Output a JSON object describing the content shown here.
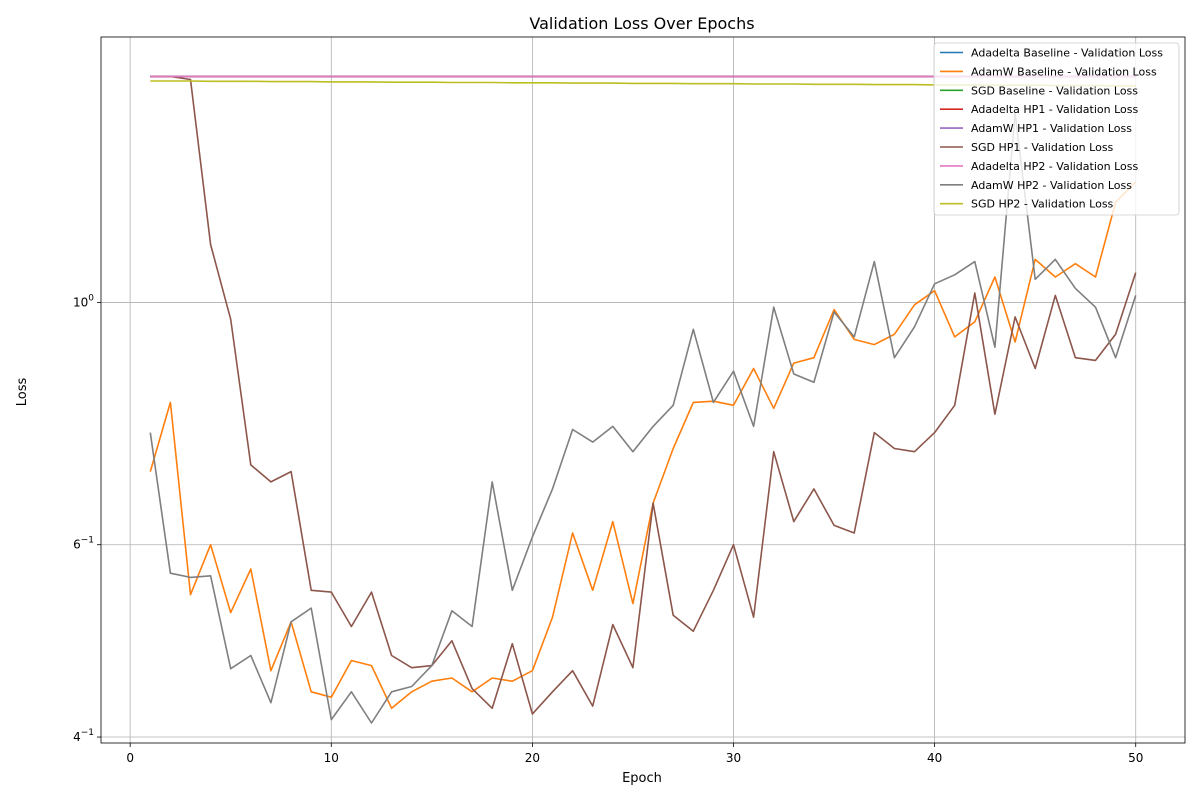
{
  "chart_data": {
    "type": "line",
    "title": "Validation Loss Over Epochs",
    "xlabel": "Epoch",
    "ylabel": "Loss",
    "yscale": "log",
    "xlim": [
      -1.45,
      52.45
    ],
    "ylim": [
      0.395,
      1.75
    ],
    "xticks": [
      0,
      10,
      20,
      30,
      40,
      50
    ],
    "yticks": [
      {
        "value": 0.4,
        "base": "4",
        "exp": "−1"
      },
      {
        "value": 0.6,
        "base": "6",
        "exp": "−1"
      },
      {
        "value": 1.0,
        "base": "10",
        "exp": "0"
      }
    ],
    "grid": true,
    "legend_position": "top-right",
    "x": [
      1,
      2,
      3,
      4,
      5,
      6,
      7,
      8,
      9,
      10,
      11,
      12,
      13,
      14,
      15,
      16,
      17,
      18,
      19,
      20,
      21,
      22,
      23,
      24,
      25,
      26,
      27,
      28,
      29,
      30,
      31,
      32,
      33,
      34,
      35,
      36,
      37,
      38,
      39,
      40,
      41,
      42,
      43,
      44,
      45,
      46,
      47,
      48,
      49,
      50
    ],
    "series": [
      {
        "name": "Adadelta Baseline - Validation Loss",
        "color": "#1f77b4",
        "values": [
          1.61,
          1.61,
          1.61,
          1.61,
          1.61,
          1.61,
          1.61,
          1.61,
          1.61,
          1.61,
          1.61,
          1.61,
          1.61,
          1.61,
          1.61,
          1.61,
          1.61,
          1.61,
          1.61,
          1.61,
          1.61,
          1.61,
          1.61,
          1.61,
          1.61,
          1.61,
          1.61,
          1.61,
          1.61,
          1.61,
          1.61,
          1.61,
          1.61,
          1.61,
          1.61,
          1.61,
          1.61,
          1.61,
          1.61,
          1.61,
          1.61,
          1.61,
          1.61,
          1.61,
          1.61,
          1.61,
          1.61,
          1.61,
          1.61,
          1.61
        ]
      },
      {
        "name": "AdamW Baseline - Validation Loss",
        "color": "#ff7f0e",
        "values": [
          0.7,
          0.81,
          0.54,
          0.6,
          0.52,
          0.57,
          0.46,
          0.51,
          0.44,
          0.435,
          0.47,
          0.465,
          0.425,
          0.44,
          0.45,
          0.453,
          0.44,
          0.453,
          0.45,
          0.46,
          0.515,
          0.615,
          0.545,
          0.63,
          0.53,
          0.655,
          0.735,
          0.81,
          0.812,
          0.805,
          0.87,
          0.8,
          0.88,
          0.89,
          0.985,
          0.925,
          0.915,
          0.935,
          0.995,
          1.025,
          0.93,
          0.96,
          1.055,
          0.92,
          1.095,
          1.055,
          1.085,
          1.055,
          1.235,
          1.29
        ]
      },
      {
        "name": "SGD Baseline - Validation Loss",
        "color": "#2ca02c",
        "values": [
          1.61,
          1.61,
          1.61,
          1.61,
          1.61,
          1.61,
          1.61,
          1.61,
          1.61,
          1.61,
          1.61,
          1.61,
          1.61,
          1.61,
          1.61,
          1.61,
          1.61,
          1.61,
          1.61,
          1.61,
          1.61,
          1.61,
          1.61,
          1.61,
          1.61,
          1.61,
          1.61,
          1.61,
          1.61,
          1.61,
          1.61,
          1.61,
          1.61,
          1.61,
          1.61,
          1.61,
          1.61,
          1.61,
          1.61,
          1.61,
          1.61,
          1.61,
          1.61,
          1.61,
          1.61,
          1.61,
          1.61,
          1.61,
          1.61,
          1.61
        ]
      },
      {
        "name": "Adadelta HP1 - Validation Loss",
        "color": "#d62728",
        "values": [
          1.61,
          1.61,
          1.61,
          1.61,
          1.61,
          1.61,
          1.61,
          1.61,
          1.61,
          1.61,
          1.61,
          1.61,
          1.61,
          1.61,
          1.61,
          1.61,
          1.61,
          1.61,
          1.61,
          1.61,
          1.61,
          1.61,
          1.61,
          1.61,
          1.61,
          1.61,
          1.61,
          1.61,
          1.61,
          1.61,
          1.61,
          1.61,
          1.61,
          1.61,
          1.61,
          1.61,
          1.61,
          1.61,
          1.61,
          1.61,
          1.61,
          1.61,
          1.61,
          1.61,
          1.61,
          1.61,
          1.61,
          1.61,
          1.61,
          1.61
        ]
      },
      {
        "name": "AdamW HP1 - Validation Loss",
        "color": "#9467bd",
        "values": [
          1.61,
          1.61,
          1.61,
          1.61,
          1.61,
          1.61,
          1.61,
          1.61,
          1.61,
          1.61,
          1.61,
          1.61,
          1.61,
          1.61,
          1.61,
          1.61,
          1.61,
          1.61,
          1.61,
          1.61,
          1.61,
          1.61,
          1.61,
          1.61,
          1.61,
          1.61,
          1.61,
          1.61,
          1.61,
          1.61,
          1.61,
          1.61,
          1.61,
          1.61,
          1.61,
          1.61,
          1.61,
          1.61,
          1.61,
          1.61,
          1.61,
          1.61,
          1.61,
          1.61,
          1.61,
          1.61,
          1.61,
          1.61,
          1.61,
          1.61
        ]
      },
      {
        "name": "SGD HP1 - Validation Loss",
        "color": "#8c564b",
        "values": [
          1.61,
          1.61,
          1.6,
          1.13,
          0.965,
          0.71,
          0.685,
          0.7,
          0.545,
          0.543,
          0.505,
          0.543,
          0.475,
          0.463,
          0.465,
          0.49,
          0.443,
          0.425,
          0.487,
          0.42,
          0.44,
          0.46,
          0.427,
          0.507,
          0.463,
          0.655,
          0.517,
          0.5,
          0.545,
          0.6,
          0.515,
          0.73,
          0.63,
          0.675,
          0.625,
          0.615,
          0.76,
          0.735,
          0.73,
          0.76,
          0.805,
          1.02,
          0.79,
          0.97,
          0.87,
          1.015,
          0.89,
          0.885,
          0.935,
          1.065
        ]
      },
      {
        "name": "Adadelta HP2 - Validation Loss",
        "color": "#e377c2",
        "values": [
          1.61,
          1.61,
          1.61,
          1.61,
          1.61,
          1.61,
          1.61,
          1.61,
          1.61,
          1.61,
          1.61,
          1.61,
          1.61,
          1.61,
          1.61,
          1.61,
          1.61,
          1.61,
          1.61,
          1.61,
          1.61,
          1.61,
          1.61,
          1.61,
          1.61,
          1.61,
          1.61,
          1.61,
          1.61,
          1.61,
          1.61,
          1.61,
          1.61,
          1.61,
          1.61,
          1.61,
          1.61,
          1.61,
          1.61,
          1.61,
          1.61,
          1.61,
          1.61,
          1.61,
          1.61,
          1.61,
          1.61,
          1.61,
          1.61,
          1.61
        ]
      },
      {
        "name": "AdamW HP2 - Validation Loss",
        "color": "#7f7f7f",
        "values": [
          0.76,
          0.565,
          0.56,
          0.562,
          0.462,
          0.475,
          0.43,
          0.51,
          0.525,
          0.415,
          0.44,
          0.412,
          0.44,
          0.445,
          0.465,
          0.522,
          0.505,
          0.685,
          0.545,
          0.61,
          0.675,
          0.765,
          0.745,
          0.77,
          0.73,
          0.77,
          0.805,
          0.945,
          0.81,
          0.865,
          0.77,
          0.99,
          0.86,
          0.845,
          0.98,
          0.93,
          1.09,
          0.89,
          0.95,
          1.04,
          1.06,
          1.09,
          0.91,
          1.49,
          1.05,
          1.095,
          1.03,
          0.99,
          0.89,
          1.015
        ]
      },
      {
        "name": "SGD HP2 - Validation Loss",
        "color": "#bcbd22",
        "values": [
          1.595,
          1.595,
          1.595,
          1.594,
          1.594,
          1.594,
          1.593,
          1.593,
          1.593,
          1.592,
          1.592,
          1.592,
          1.591,
          1.591,
          1.591,
          1.59,
          1.59,
          1.59,
          1.589,
          1.589,
          1.589,
          1.588,
          1.588,
          1.588,
          1.587,
          1.587,
          1.587,
          1.586,
          1.586,
          1.586,
          1.585,
          1.585,
          1.585,
          1.584,
          1.584,
          1.584,
          1.583,
          1.583,
          1.583,
          1.582,
          1.582,
          1.582,
          1.581,
          1.581,
          1.581,
          1.58,
          1.58,
          1.58,
          1.579,
          1.579
        ]
      }
    ]
  }
}
